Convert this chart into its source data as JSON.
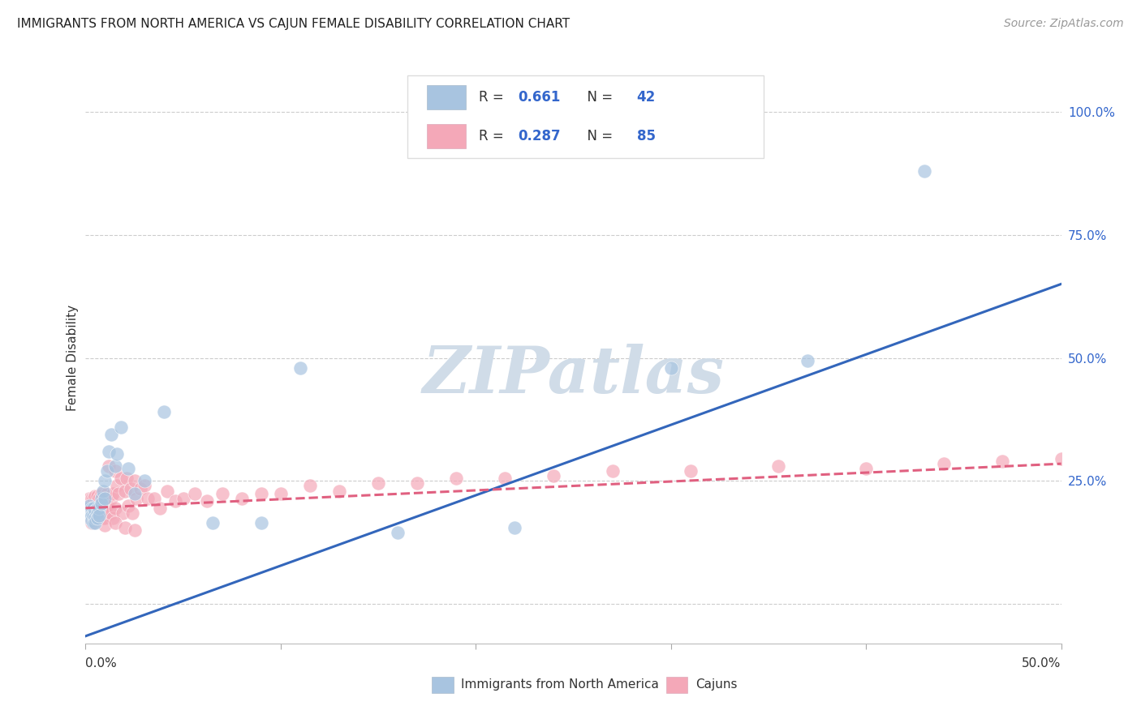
{
  "title": "IMMIGRANTS FROM NORTH AMERICA VS CAJUN FEMALE DISABILITY CORRELATION CHART",
  "source": "Source: ZipAtlas.com",
  "ylabel": "Female Disability",
  "right_yticks": [
    0.0,
    0.25,
    0.5,
    0.75,
    1.0
  ],
  "right_yticklabels": [
    "",
    "25.0%",
    "50.0%",
    "75.0%",
    "100.0%"
  ],
  "xlim": [
    0.0,
    0.5
  ],
  "ylim": [
    -0.08,
    1.08
  ],
  "blue_R": 0.661,
  "blue_N": 42,
  "pink_R": 0.287,
  "pink_N": 85,
  "blue_color": "#A8C4E0",
  "pink_color": "#F4A8B8",
  "blue_line_color": "#3366BB",
  "pink_line_color": "#E06080",
  "grid_color": "#CCCCCC",
  "watermark_color": "#D0DCE8",
  "legend_text_color": "#3366CC",
  "bottom_legend_text_color": "#333333",
  "blue_scatter_x": [
    0.001,
    0.002,
    0.002,
    0.002,
    0.003,
    0.003,
    0.003,
    0.003,
    0.004,
    0.004,
    0.004,
    0.005,
    0.005,
    0.005,
    0.006,
    0.006,
    0.006,
    0.007,
    0.007,
    0.008,
    0.008,
    0.009,
    0.01,
    0.01,
    0.011,
    0.012,
    0.013,
    0.015,
    0.016,
    0.018,
    0.022,
    0.025,
    0.03,
    0.04,
    0.065,
    0.09,
    0.11,
    0.16,
    0.22,
    0.3,
    0.37,
    0.43
  ],
  "blue_scatter_y": [
    0.195,
    0.2,
    0.185,
    0.175,
    0.19,
    0.195,
    0.18,
    0.17,
    0.195,
    0.18,
    0.165,
    0.19,
    0.175,
    0.165,
    0.195,
    0.185,
    0.175,
    0.195,
    0.18,
    0.215,
    0.205,
    0.23,
    0.25,
    0.215,
    0.27,
    0.31,
    0.345,
    0.28,
    0.305,
    0.36,
    0.275,
    0.225,
    0.25,
    0.39,
    0.165,
    0.165,
    0.48,
    0.145,
    0.155,
    0.48,
    0.495,
    0.88
  ],
  "pink_scatter_x": [
    0.001,
    0.001,
    0.001,
    0.002,
    0.002,
    0.002,
    0.002,
    0.003,
    0.003,
    0.003,
    0.003,
    0.004,
    0.004,
    0.004,
    0.004,
    0.005,
    0.005,
    0.005,
    0.005,
    0.006,
    0.006,
    0.006,
    0.007,
    0.007,
    0.007,
    0.008,
    0.008,
    0.008,
    0.009,
    0.009,
    0.01,
    0.01,
    0.01,
    0.011,
    0.011,
    0.012,
    0.013,
    0.013,
    0.014,
    0.014,
    0.015,
    0.015,
    0.016,
    0.017,
    0.018,
    0.019,
    0.02,
    0.021,
    0.022,
    0.023,
    0.024,
    0.025,
    0.026,
    0.028,
    0.03,
    0.032,
    0.035,
    0.038,
    0.042,
    0.046,
    0.05,
    0.056,
    0.062,
    0.07,
    0.08,
    0.09,
    0.1,
    0.115,
    0.13,
    0.15,
    0.17,
    0.19,
    0.215,
    0.24,
    0.27,
    0.31,
    0.355,
    0.4,
    0.44,
    0.47,
    0.5,
    0.01,
    0.015,
    0.02,
    0.025
  ],
  "pink_scatter_y": [
    0.185,
    0.175,
    0.195,
    0.18,
    0.2,
    0.175,
    0.215,
    0.185,
    0.195,
    0.215,
    0.165,
    0.175,
    0.195,
    0.175,
    0.215,
    0.185,
    0.2,
    0.175,
    0.22,
    0.195,
    0.175,
    0.22,
    0.205,
    0.185,
    0.215,
    0.2,
    0.185,
    0.225,
    0.205,
    0.175,
    0.215,
    0.19,
    0.175,
    0.225,
    0.2,
    0.28,
    0.215,
    0.185,
    0.225,
    0.175,
    0.195,
    0.27,
    0.24,
    0.225,
    0.255,
    0.185,
    0.23,
    0.255,
    0.2,
    0.235,
    0.185,
    0.25,
    0.215,
    0.235,
    0.24,
    0.215,
    0.215,
    0.195,
    0.23,
    0.21,
    0.215,
    0.225,
    0.21,
    0.225,
    0.215,
    0.225,
    0.225,
    0.24,
    0.23,
    0.245,
    0.245,
    0.255,
    0.255,
    0.26,
    0.27,
    0.27,
    0.28,
    0.275,
    0.285,
    0.29,
    0.295,
    0.16,
    0.165,
    0.155,
    0.15
  ]
}
